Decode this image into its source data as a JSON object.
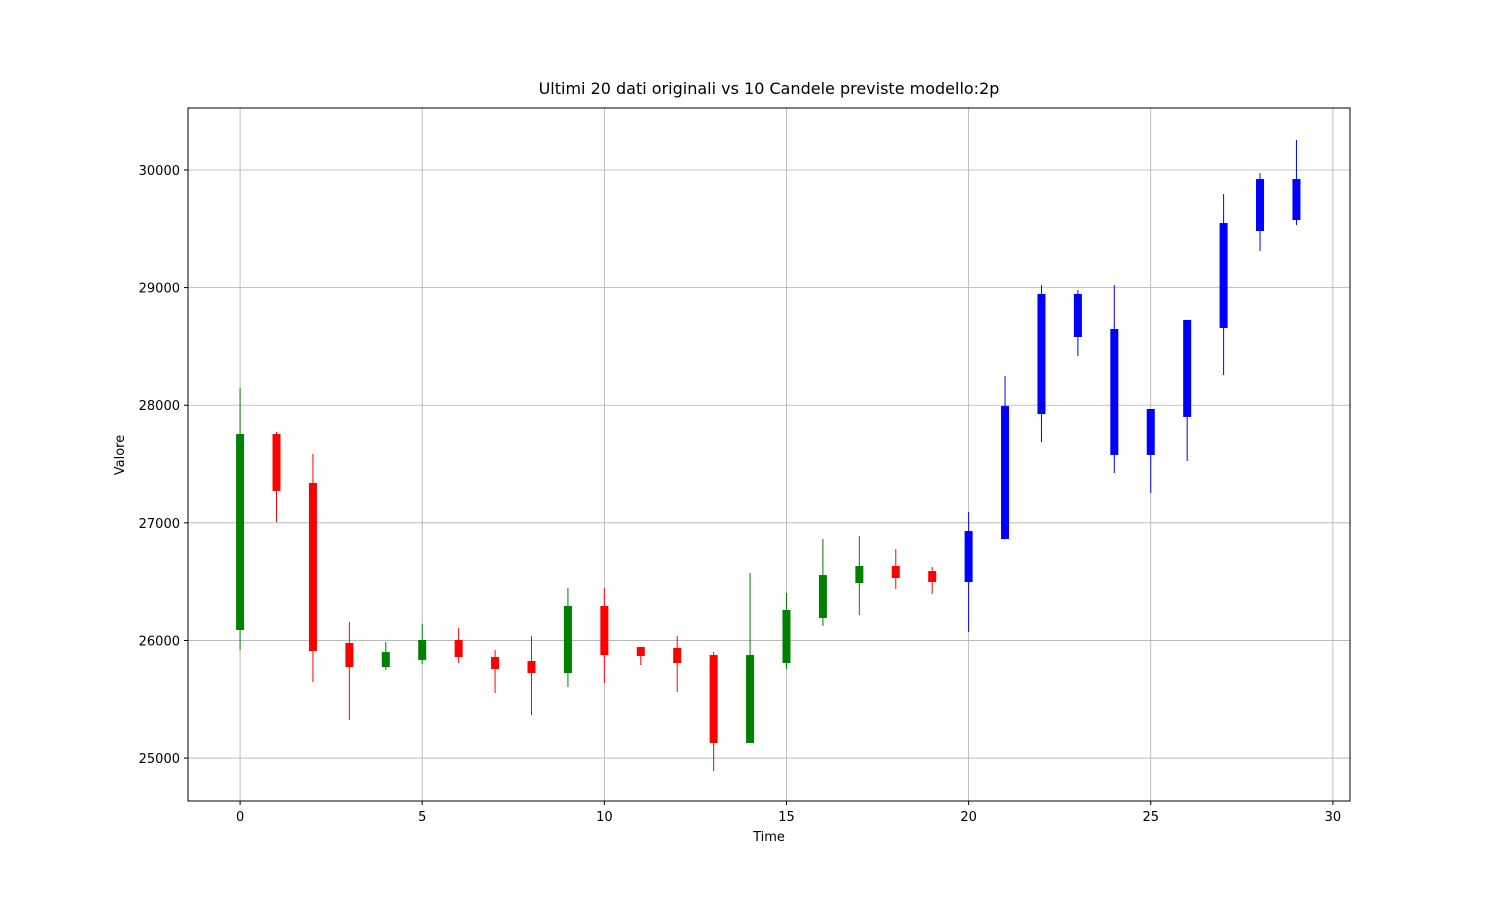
{
  "chart_data": {
    "type": "candlestick",
    "title": "Ultimi 20 dati originali vs 10 Candele previste modello:2p",
    "x_label": "Time",
    "y_label": "Valore",
    "xlim": [
      -1.43,
      30.47
    ],
    "ylim": [
      24635,
      30527
    ],
    "xticks": [
      0,
      5,
      10,
      15,
      20,
      25,
      30
    ],
    "yticks": [
      25000,
      26000,
      27000,
      28000,
      29000,
      30000
    ],
    "grid": true,
    "groups": [
      {
        "x": [
          0,
          1,
          2,
          3,
          4,
          5,
          6,
          7,
          8,
          9,
          10,
          11,
          12,
          13,
          14,
          15,
          16,
          17,
          18,
          19
        ],
        "open": [
          26089,
          27755,
          27339,
          25978,
          25774,
          25834,
          26004,
          25859,
          25825,
          25723,
          26293,
          25944,
          25936,
          25876,
          25128,
          25808,
          26191,
          26488,
          26633,
          26590
        ],
        "high": [
          28146,
          27772,
          27585,
          26157,
          25987,
          26140,
          26106,
          25919,
          26037,
          26446,
          26446,
          25944,
          26037,
          25902,
          26573,
          26403,
          26862,
          26888,
          26777,
          26624
        ],
        "low": [
          25919,
          27007,
          25647,
          25323,
          25749,
          25800,
          25808,
          25553,
          25366,
          25604,
          25638,
          25791,
          25561,
          24890,
          25128,
          25757,
          26123,
          26216,
          26437,
          26395
        ],
        "close": [
          27755,
          27271,
          25910,
          25774,
          25901,
          26004,
          25859,
          25757,
          25723,
          26293,
          25876,
          25868,
          25808,
          25128,
          25876,
          26259,
          26556,
          26633,
          26531,
          26497
        ],
        "up_color": "green",
        "down_color": "red"
      },
      {
        "x": [
          20,
          21,
          22,
          23,
          24,
          25,
          26,
          27,
          28,
          29
        ],
        "open": [
          26497,
          26862,
          27925,
          28580,
          28648,
          27968,
          27900,
          28657,
          29481,
          29575
        ],
        "high": [
          27092,
          28248,
          29022,
          28980,
          29022,
          27968,
          28725,
          29796,
          29974,
          30255
        ],
        "low": [
          26072,
          26862,
          27687,
          28418,
          27424,
          27254,
          27526,
          28257,
          29311,
          29532
        ],
        "close": [
          26930,
          27993,
          28946,
          28946,
          27577,
          27577,
          28725,
          29549,
          29923,
          29923
        ],
        "color": "blue"
      }
    ]
  }
}
